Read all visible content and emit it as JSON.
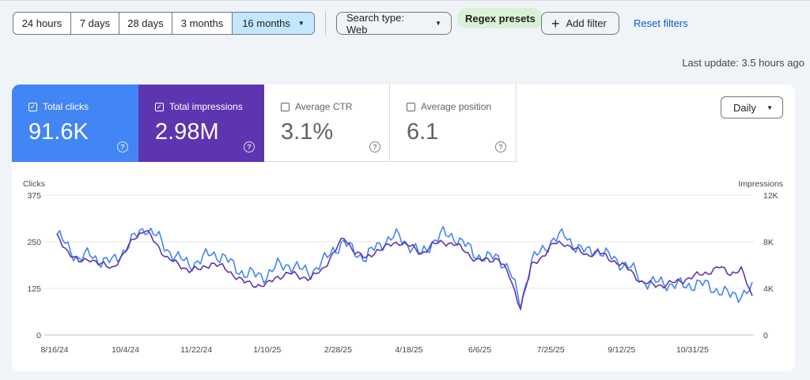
{
  "filters": {
    "date_ranges": [
      {
        "label": "24 hours",
        "selected": false
      },
      {
        "label": "7 days",
        "selected": false
      },
      {
        "label": "28 days",
        "selected": false
      },
      {
        "label": "3 months",
        "selected": false
      },
      {
        "label": "16 months",
        "selected": true
      }
    ],
    "search_type": "Search type: Web",
    "regex_presets": "Regex presets",
    "add_filter": "Add filter",
    "reset_filters": "Reset filters"
  },
  "last_update": "Last update: 3.5 hours ago",
  "metrics": {
    "clicks": {
      "label": "Total clicks",
      "value": "91.6K",
      "checked": true,
      "color": "#4285f4"
    },
    "impressions": {
      "label": "Total impressions",
      "value": "2.98M",
      "checked": true,
      "color": "#5e35b1"
    },
    "ctr": {
      "label": "Average CTR",
      "value": "3.1%",
      "checked": false
    },
    "position": {
      "label": "Average position",
      "value": "6.1",
      "checked": false
    }
  },
  "granularity": "Daily",
  "icons": {
    "help": "help-circle-icon",
    "check": "checkbox-icon",
    "caret": "caret-down-icon",
    "add": "plus-icon"
  },
  "chart_data": {
    "type": "line",
    "left_axis_label": "Clicks",
    "right_axis_label": "Impressions",
    "left_ticks": [
      "375",
      "250",
      "125",
      "0"
    ],
    "right_ticks": [
      "12K",
      "8K",
      "4K",
      "0"
    ],
    "ylim_left": [
      0,
      375
    ],
    "ylim_right": [
      0,
      12000
    ],
    "x_ticks": [
      "8/16/24",
      "10/4/24",
      "11/22/24",
      "1/10/25",
      "2/28/25",
      "4/18/25",
      "6/6/25",
      "7/25/25",
      "9/12/25",
      "10/31/25"
    ],
    "x_start": "2024-08-16",
    "x_end": "2025-12-16",
    "series": [
      {
        "name": "Clicks",
        "color": "#4285f4",
        "axis": "left",
        "approx_values": [
          270,
          235,
          205,
          215,
          200,
          195,
          225,
          260,
          290,
          265,
          230,
          205,
          190,
          200,
          220,
          210,
          185,
          165,
          160,
          160,
          185,
          190,
          175,
          170,
          190,
          230,
          245,
          225,
          205,
          240,
          255,
          265,
          240,
          215,
          250,
          270,
          265,
          240,
          215,
          205,
          210,
          175,
          80,
          200,
          225,
          260,
          265,
          240,
          220,
          230,
          210,
          195,
          180,
          145,
          140,
          140,
          135,
          130,
          140,
          130,
          120,
          105,
          110,
          120
        ]
      },
      {
        "name": "Impressions",
        "color": "#5e35b1",
        "axis": "right",
        "approx_values": [
          8400,
          7200,
          6200,
          6600,
          6000,
          5800,
          6800,
          8400,
          9000,
          7800,
          6600,
          6000,
          5600,
          5600,
          6200,
          5800,
          5200,
          4500,
          4300,
          4300,
          5000,
          5300,
          5000,
          4900,
          5500,
          7000,
          8300,
          7200,
          6500,
          7300,
          7600,
          8000,
          7600,
          7000,
          7700,
          8000,
          7800,
          7200,
          6400,
          6400,
          6600,
          5000,
          2400,
          5900,
          6800,
          7800,
          7900,
          7300,
          6900,
          7100,
          6600,
          6100,
          5500,
          4500,
          4300,
          4300,
          4500,
          4800,
          5100,
          5400,
          5800,
          5300,
          5600,
          3300
        ]
      }
    ]
  }
}
